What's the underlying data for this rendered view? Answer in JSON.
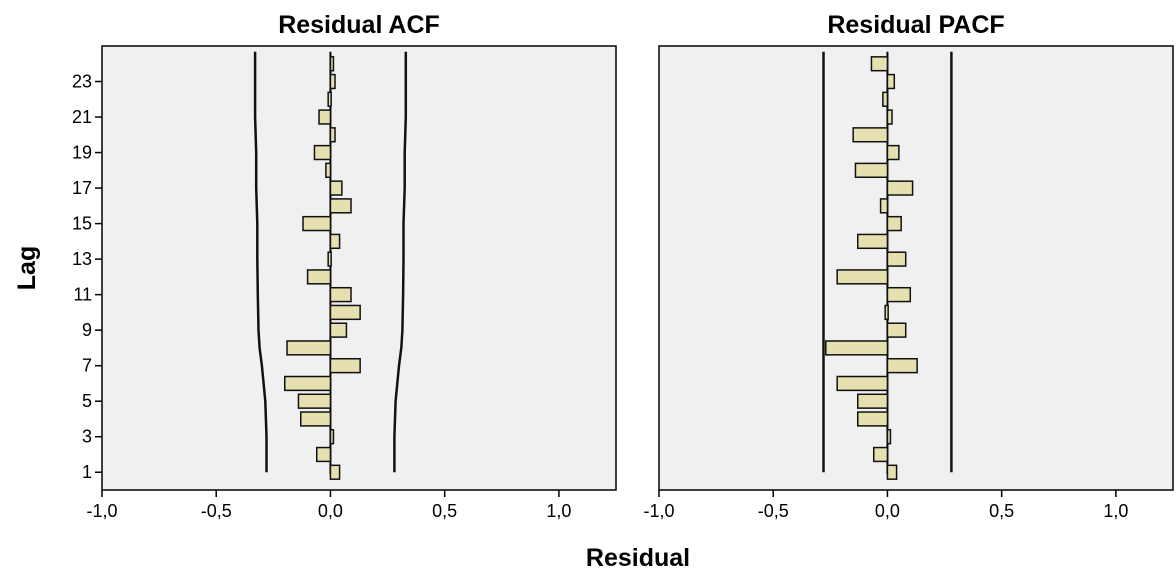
{
  "colors": {
    "plot_background": "#f0f0f0",
    "bar_fill": "#e6e0b0",
    "bar_stroke": "#111111",
    "line": "#111111"
  },
  "figure": {
    "shared_xlabel": "Residual",
    "shared_ylabel": "Lag"
  },
  "chart_data": [
    {
      "type": "bar",
      "orientation": "horizontal",
      "title": "Residual ACF",
      "xlabel": "Residual",
      "ylabel": "Lag",
      "xlim": [
        -1.0,
        1.25
      ],
      "ylim": [
        0,
        25
      ],
      "x_tick_values": [
        -1.0,
        -0.5,
        0.0,
        0.5,
        1.0
      ],
      "x_tick_labels": [
        "-1,0",
        "-0,5",
        "0,0",
        "0,5",
        "1,0"
      ],
      "y_tick_values": [
        1,
        3,
        5,
        7,
        9,
        11,
        13,
        15,
        17,
        19,
        21,
        23
      ],
      "y_tick_labels": [
        "1",
        "3",
        "5",
        "7",
        "9",
        "11",
        "13",
        "15",
        "17",
        "19",
        "21",
        "23"
      ],
      "lags": [
        1,
        2,
        3,
        4,
        5,
        6,
        7,
        8,
        9,
        10,
        11,
        12,
        13,
        14,
        15,
        16,
        17,
        18,
        19,
        20,
        21,
        22,
        23,
        24
      ],
      "values": [
        0.04,
        -0.06,
        0.01,
        -0.13,
        -0.14,
        -0.2,
        0.13,
        -0.19,
        0.07,
        0.13,
        0.09,
        -0.1,
        -0.01,
        0.04,
        -0.12,
        0.09,
        0.05,
        -0.02,
        -0.07,
        0.02,
        -0.05,
        -0.01,
        0.02,
        0.0
      ],
      "confidence_limits": {
        "lags": [
          1,
          3,
          5,
          7,
          8,
          9,
          11,
          13,
          15,
          17,
          19,
          21,
          23,
          24
        ],
        "upper": [
          0.28,
          0.28,
          0.285,
          0.3,
          0.31,
          0.315,
          0.318,
          0.32,
          0.32,
          0.325,
          0.325,
          0.33,
          0.33,
          0.33
        ],
        "lower": [
          -0.28,
          -0.28,
          -0.285,
          -0.3,
          -0.31,
          -0.315,
          -0.318,
          -0.32,
          -0.32,
          -0.325,
          -0.325,
          -0.33,
          -0.33,
          -0.33
        ]
      },
      "grid": false
    },
    {
      "type": "bar",
      "orientation": "horizontal",
      "title": "Residual PACF",
      "xlabel": "Residual",
      "ylabel": "",
      "xlim": [
        -1.0,
        1.25
      ],
      "ylim": [
        0,
        25
      ],
      "x_tick_values": [
        -1.0,
        -0.5,
        0.0,
        0.5,
        1.0
      ],
      "x_tick_labels": [
        "-1,0",
        "-0,5",
        "0,0",
        "0,5",
        "1,0"
      ],
      "y_tick_values": [],
      "y_tick_labels": [],
      "lags": [
        1,
        2,
        3,
        4,
        5,
        6,
        7,
        8,
        9,
        10,
        11,
        12,
        13,
        14,
        15,
        16,
        17,
        18,
        19,
        20,
        21,
        22,
        23,
        24
      ],
      "values": [
        0.04,
        -0.06,
        0.01,
        -0.13,
        -0.13,
        -0.22,
        0.13,
        -0.27,
        0.08,
        -0.01,
        0.1,
        -0.22,
        0.08,
        -0.13,
        0.06,
        -0.03,
        0.11,
        -0.14,
        0.05,
        -0.15,
        0.02,
        -0.02,
        0.03,
        -0.07
      ],
      "confidence_limits": {
        "lags": [
          1,
          24
        ],
        "upper": [
          0.28,
          0.28
        ],
        "lower": [
          -0.28,
          -0.28
        ]
      },
      "grid": false
    }
  ]
}
